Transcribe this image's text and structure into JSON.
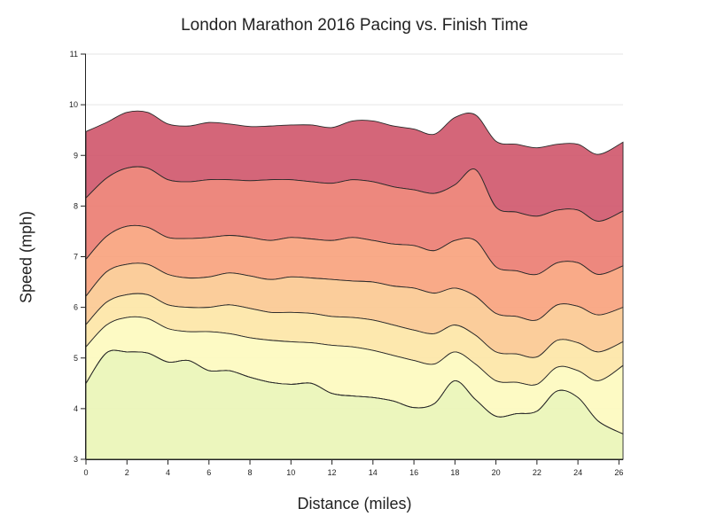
{
  "chart_data": {
    "type": "area",
    "title": "London Marathon 2016 Pacing vs. Finish Time",
    "xlabel": "Distance (miles)",
    "ylabel": "Speed (mph)",
    "xlim": [
      0,
      26.2
    ],
    "ylim": [
      3,
      11
    ],
    "x_ticks": [
      0,
      2,
      4,
      6,
      8,
      10,
      12,
      14,
      16,
      18,
      20,
      22,
      24,
      26
    ],
    "y_ticks": [
      3,
      4,
      5,
      6,
      7,
      8,
      9,
      10,
      11
    ],
    "grid": true,
    "legend": "none",
    "x": [
      0,
      1,
      2,
      3,
      4,
      5,
      6,
      7,
      8,
      9,
      10,
      11,
      12,
      13,
      14,
      15,
      16,
      17,
      18,
      19,
      20,
      21,
      22,
      23,
      24,
      25,
      26.2
    ],
    "series": [
      {
        "color": "#d0596e",
        "values": [
          9.47,
          9.65,
          9.85,
          9.85,
          9.62,
          9.58,
          9.65,
          9.62,
          9.57,
          9.58,
          9.6,
          9.6,
          9.55,
          9.68,
          9.68,
          9.58,
          9.52,
          9.42,
          9.75,
          9.8,
          9.28,
          9.22,
          9.15,
          9.22,
          9.22,
          9.02,
          9.26
        ]
      },
      {
        "color": "#eb7e73",
        "values": [
          8.16,
          8.55,
          8.75,
          8.75,
          8.52,
          8.48,
          8.52,
          8.52,
          8.5,
          8.52,
          8.52,
          8.48,
          8.45,
          8.52,
          8.48,
          8.38,
          8.32,
          8.25,
          8.42,
          8.72,
          7.98,
          7.88,
          7.8,
          7.92,
          7.92,
          7.7,
          7.9
        ]
      },
      {
        "color": "#f8a37e",
        "values": [
          6.95,
          7.4,
          7.6,
          7.58,
          7.38,
          7.36,
          7.38,
          7.42,
          7.38,
          7.32,
          7.38,
          7.35,
          7.32,
          7.38,
          7.32,
          7.25,
          7.22,
          7.12,
          7.32,
          7.32,
          6.8,
          6.72,
          6.65,
          6.88,
          6.88,
          6.65,
          6.82
        ]
      },
      {
        "color": "#fbc992",
        "values": [
          6.22,
          6.7,
          6.85,
          6.85,
          6.65,
          6.58,
          6.6,
          6.68,
          6.62,
          6.55,
          6.6,
          6.58,
          6.55,
          6.52,
          6.5,
          6.42,
          6.38,
          6.28,
          6.38,
          6.22,
          5.88,
          5.82,
          5.75,
          6.05,
          6.02,
          5.85,
          6.0
        ]
      },
      {
        "color": "#fde6a7",
        "values": [
          5.66,
          6.1,
          6.25,
          6.25,
          6.05,
          6.0,
          6.0,
          6.05,
          5.98,
          5.9,
          5.9,
          5.88,
          5.82,
          5.8,
          5.75,
          5.65,
          5.55,
          5.48,
          5.65,
          5.45,
          5.12,
          5.08,
          5.02,
          5.35,
          5.3,
          5.12,
          5.32
        ]
      },
      {
        "color": "#fdfabf",
        "values": [
          5.22,
          5.65,
          5.8,
          5.78,
          5.58,
          5.52,
          5.52,
          5.48,
          5.4,
          5.35,
          5.32,
          5.3,
          5.25,
          5.22,
          5.15,
          5.05,
          4.95,
          4.88,
          5.12,
          4.88,
          4.55,
          4.52,
          4.48,
          4.82,
          4.75,
          4.55,
          4.85
        ]
      },
      {
        "color": "#eaf5b7",
        "values": [
          4.5,
          5.1,
          5.12,
          5.1,
          4.92,
          4.95,
          4.75,
          4.75,
          4.62,
          4.52,
          4.48,
          4.5,
          4.3,
          4.25,
          4.22,
          4.15,
          4.02,
          4.1,
          4.55,
          4.18,
          3.85,
          3.9,
          3.95,
          4.35,
          4.22,
          3.75,
          3.5
        ]
      }
    ]
  }
}
